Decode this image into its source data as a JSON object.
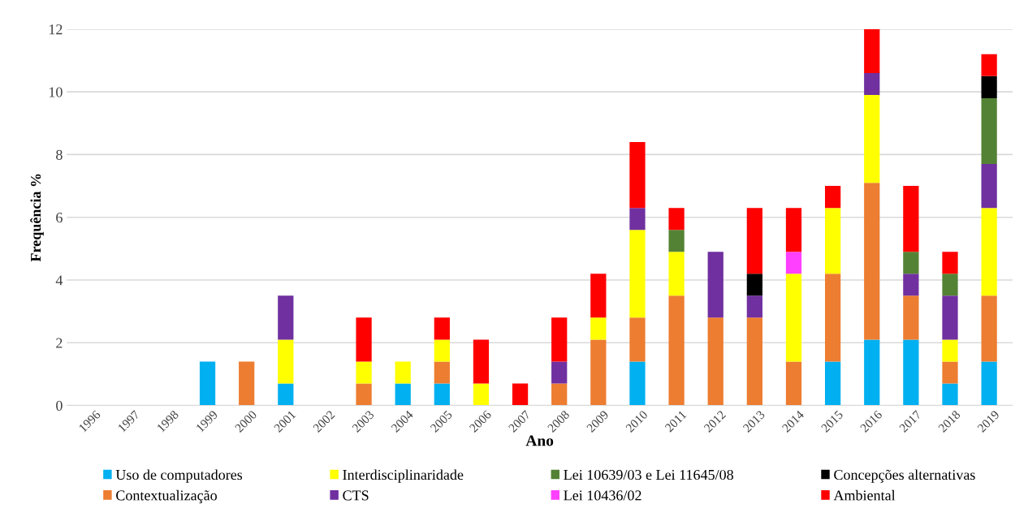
{
  "chart_data": {
    "type": "bar",
    "stacked": true,
    "xlabel": "Ano",
    "ylabel": "Frequência %",
    "categories": [
      "1996",
      "1997",
      "1998",
      "1999",
      "2000",
      "2001",
      "2002",
      "2003",
      "2004",
      "2005",
      "2006",
      "2007",
      "2008",
      "2009",
      "2010",
      "2011",
      "2012",
      "2013",
      "2014",
      "2015",
      "2016",
      "2017",
      "2018",
      "2019"
    ],
    "series": [
      {
        "name": "Uso de computadores",
        "color": "#00b0f0",
        "values": [
          null,
          null,
          null,
          1.4,
          null,
          0.7,
          null,
          null,
          0.7,
          0.7,
          null,
          null,
          null,
          null,
          1.4,
          null,
          null,
          null,
          null,
          1.4,
          2.1,
          2.1,
          0.7,
          1.4
        ]
      },
      {
        "name": "Contextualização",
        "color": "#ed7d31",
        "values": [
          null,
          null,
          null,
          null,
          1.4,
          null,
          null,
          0.7,
          null,
          0.7,
          null,
          null,
          0.7,
          2.1,
          1.4,
          3.5,
          2.8,
          2.8,
          1.4,
          2.8,
          5.0,
          1.4,
          0.7,
          2.1
        ]
      },
      {
        "name": "Interdisciplinaridade",
        "color": "#ffff00",
        "values": [
          null,
          null,
          null,
          null,
          null,
          1.4,
          null,
          0.7,
          0.7,
          0.7,
          0.7,
          null,
          null,
          0.7,
          2.8,
          1.4,
          null,
          null,
          2.8,
          2.1,
          2.8,
          null,
          0.7,
          2.8
        ]
      },
      {
        "name": "CTS",
        "color": "#7030a0",
        "values": [
          null,
          null,
          null,
          null,
          null,
          1.4,
          null,
          null,
          null,
          null,
          null,
          null,
          0.7,
          null,
          0.7,
          null,
          2.1,
          0.7,
          null,
          null,
          0.7,
          0.7,
          1.4,
          1.4
        ]
      },
      {
        "name": "Lei 10639/03 e Lei 11645/08",
        "color": "#548235",
        "values": [
          null,
          null,
          null,
          null,
          null,
          null,
          null,
          null,
          null,
          null,
          null,
          null,
          null,
          null,
          null,
          0.7,
          null,
          null,
          null,
          null,
          null,
          0.7,
          0.7,
          2.1
        ]
      },
      {
        "name": "Lei 10436/02",
        "color": "#ff40ff",
        "values": [
          null,
          null,
          null,
          null,
          null,
          null,
          null,
          null,
          null,
          null,
          null,
          null,
          null,
          null,
          null,
          null,
          null,
          null,
          0.7,
          null,
          null,
          null,
          null,
          null
        ]
      },
      {
        "name": "Concepções alternativas",
        "color": "#000000",
        "values": [
          null,
          null,
          null,
          null,
          null,
          null,
          null,
          null,
          null,
          null,
          null,
          null,
          null,
          null,
          null,
          null,
          null,
          0.7,
          null,
          null,
          null,
          null,
          null,
          0.7
        ]
      },
      {
        "name": "Ambiental",
        "color": "#ff0000",
        "values": [
          null,
          null,
          null,
          null,
          null,
          null,
          null,
          1.4,
          null,
          0.7,
          1.4,
          0.7,
          1.4,
          1.4,
          2.1,
          0.7,
          null,
          2.1,
          1.4,
          0.7,
          1.4,
          2.1,
          0.7,
          0.7
        ]
      }
    ],
    "ylim": [
      0,
      12
    ],
    "yticks": [
      0,
      2,
      4,
      6,
      8,
      10,
      12
    ],
    "grid": "y",
    "legend": "bottom"
  }
}
